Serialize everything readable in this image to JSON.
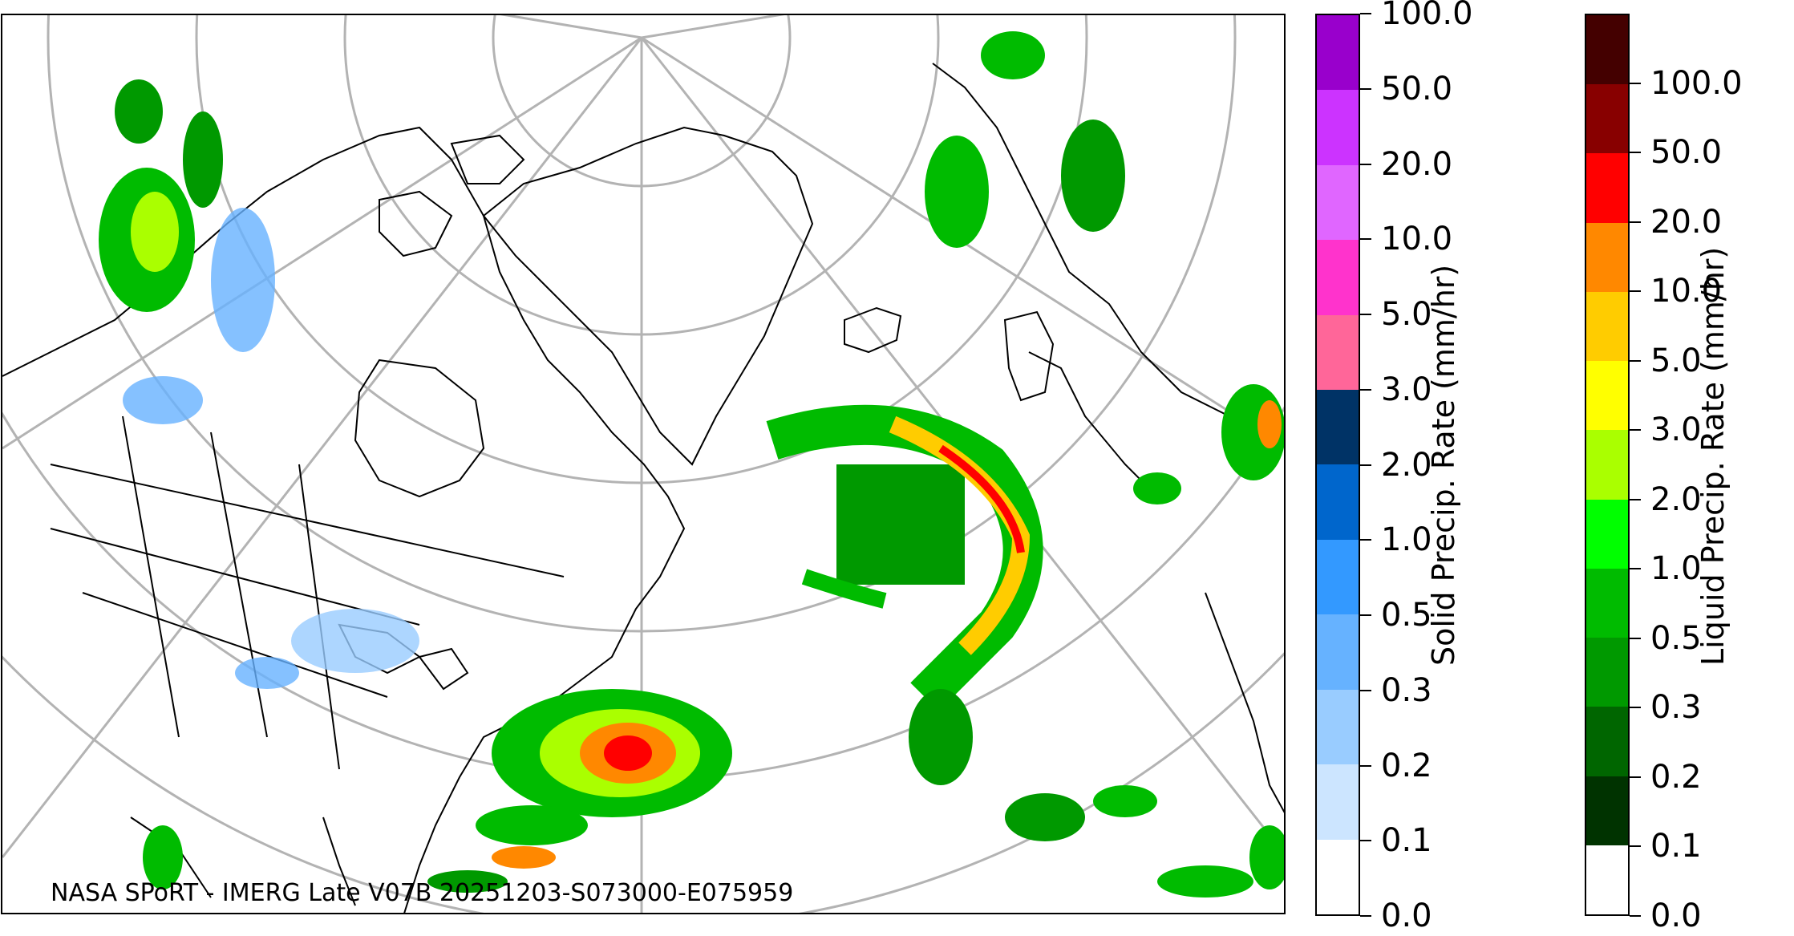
{
  "credit": "NASA SPoRT - IMERG Late V07B 20251203-S073000-E075959",
  "colorbars": {
    "solid": {
      "title": "Solid Precip. Rate (mm/hr)",
      "ticks": [
        "0.0",
        "0.1",
        "0.2",
        "0.3",
        "0.5",
        "1.0",
        "2.0",
        "3.0",
        "5.0",
        "10.0",
        "20.0",
        "50.0",
        "100.0"
      ],
      "colors": [
        "#ffffff",
        "#cce5ff",
        "#99ccff",
        "#66b2ff",
        "#3399ff",
        "#0066cc",
        "#003366",
        "#ff6699",
        "#ff33cc",
        "#e066ff",
        "#cc33ff",
        "#9900cc"
      ]
    },
    "liquid": {
      "title": "Liquid Precip. Rate (mm/hr)",
      "ticks": [
        "0.0",
        "0.1",
        "0.2",
        "0.3",
        "0.5",
        "1.0",
        "2.0",
        "3.0",
        "5.0",
        "10.0",
        "20.0",
        "50.0",
        "100.0"
      ],
      "colors": [
        "#ffffff",
        "#003300",
        "#006600",
        "#009900",
        "#00bb00",
        "#00ff00",
        "#aaff00",
        "#ffff00",
        "#ffcc00",
        "#ff8800",
        "#ff0000",
        "#880000",
        "#440000"
      ]
    }
  },
  "map_colors": {
    "graticule": "#b3b3b3",
    "coastline": "#000000"
  }
}
